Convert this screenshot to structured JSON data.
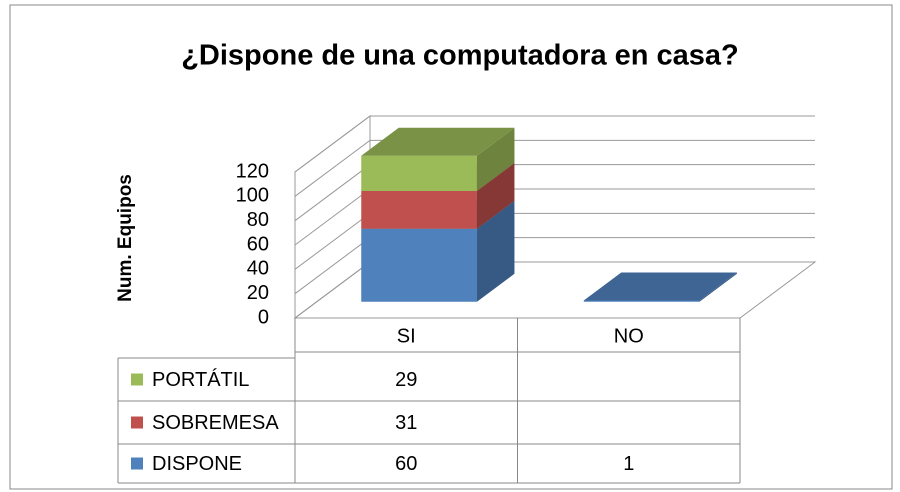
{
  "chart_data": {
    "type": "bar3d_stacked",
    "title": "¿Dispone de una computadora en casa?",
    "y_label": "Num. Equipos",
    "categories": [
      "SI",
      "NO"
    ],
    "series": [
      {
        "name": "DISPONE",
        "color": "#4f81bd",
        "values": [
          60,
          1
        ]
      },
      {
        "name": "SOBREMESA",
        "color": "#c0504d",
        "values": [
          31,
          null
        ]
      },
      {
        "name": "PORTÁTIL",
        "color": "#9bbb59",
        "values": [
          29,
          null
        ]
      }
    ],
    "ylim": [
      0,
      120
    ],
    "yticks": [
      0,
      20,
      40,
      60,
      80,
      100,
      120
    ],
    "grid": true,
    "data_table": true
  }
}
